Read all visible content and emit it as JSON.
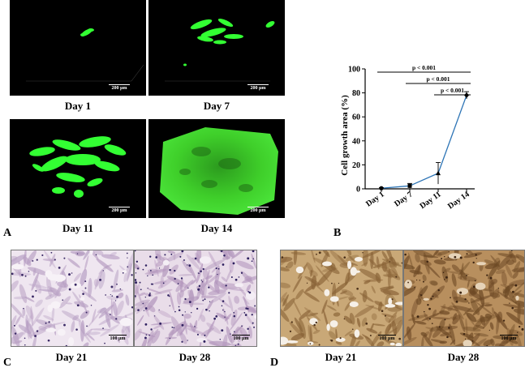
{
  "panels": {
    "a": {
      "letter": "A"
    },
    "b": {
      "letter": "B"
    },
    "c": {
      "letter": "C"
    },
    "d": {
      "letter": "D"
    }
  },
  "confocal": [
    {
      "day": "Day 1",
      "scale": "200 µm"
    },
    {
      "day": "Day 7",
      "scale": "200 µm"
    },
    {
      "day": "Day 11",
      "scale": "200 µm"
    },
    {
      "day": "Day 14",
      "scale": "200 µm"
    }
  ],
  "he_stain": [
    {
      "day": "Day 21",
      "scale": "100 µm"
    },
    {
      "day": "Day 28",
      "scale": "100 µm"
    }
  ],
  "ihc_stain": [
    {
      "day": "Day 21",
      "scale": "100 µm"
    },
    {
      "day": "Day 28",
      "scale": "100 µm"
    }
  ],
  "chart_data": {
    "type": "line",
    "categories": [
      "Day 1",
      "Day 7",
      "Day 11",
      "Day 14"
    ],
    "series": [
      {
        "values": [
          0.5,
          2.5,
          13,
          78
        ],
        "errors": [
          0.5,
          2,
          9,
          3
        ],
        "markers": [
          "circle",
          "square",
          "triangle",
          "diamond"
        ]
      }
    ],
    "title": "",
    "xlabel": "",
    "ylabel": "Cell growth area (%)",
    "ylim": [
      0,
      100
    ],
    "yticks": [
      0,
      20,
      40,
      60,
      80,
      100
    ],
    "significance": [
      {
        "from": 0,
        "to": 3,
        "label": "p < 0.001"
      },
      {
        "from": 1,
        "to": 3,
        "label": "p < 0.001"
      },
      {
        "from": 2,
        "to": 3,
        "label": "p < 0.001"
      }
    ],
    "line_color": "#2e75b6",
    "grid": false,
    "legend": "none"
  },
  "colors": {
    "fluorescence": "#33ff33",
    "he_background": "#efe6f0",
    "ihc_background": "#c9a877"
  }
}
